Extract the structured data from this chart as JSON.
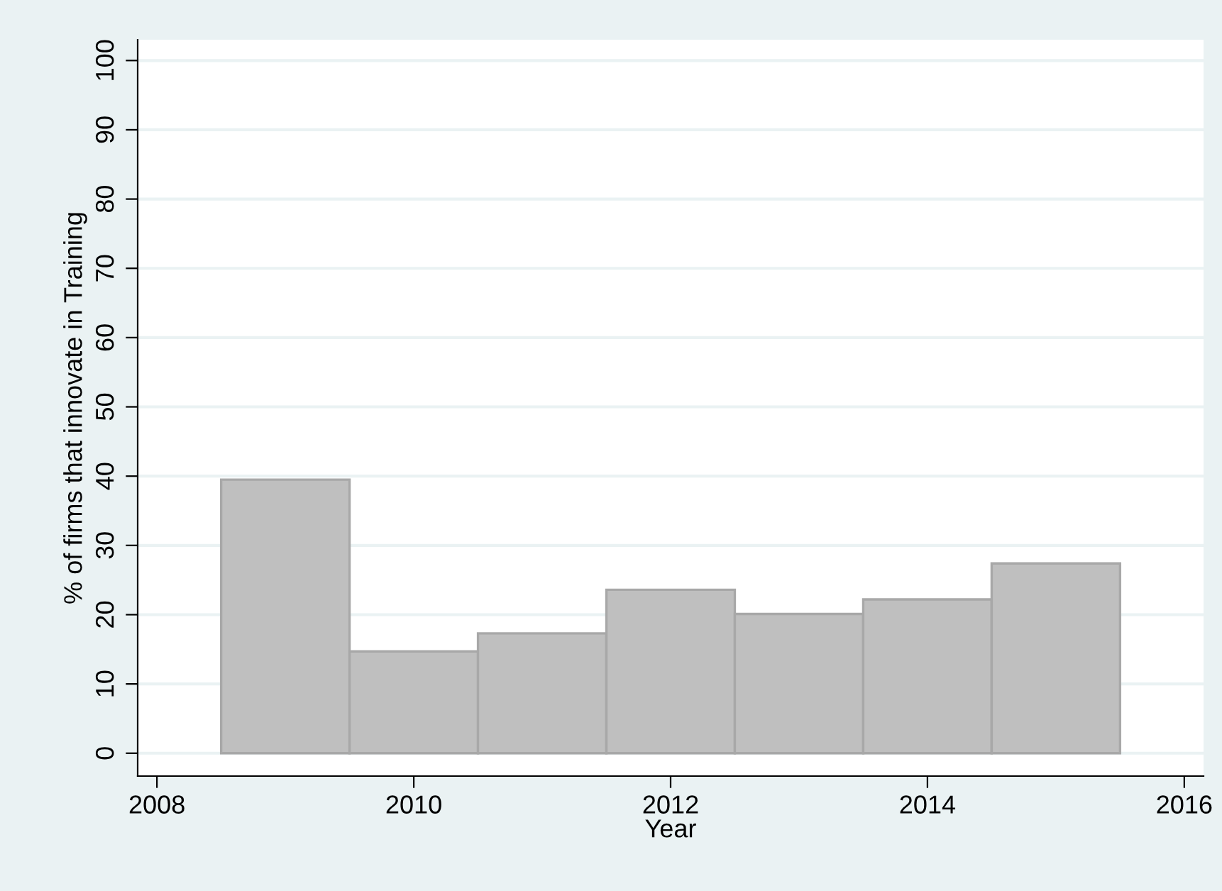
{
  "chart_data": {
    "type": "histogram",
    "xlabel": "Year",
    "ylabel": "% of firms that innovate in Training",
    "bins": [
      2008.5,
      2009.5,
      2010.5,
      2011.5,
      2012.5,
      2013.5,
      2014.5,
      2015.5
    ],
    "values": [
      39.5,
      14.7,
      17.3,
      23.6,
      20.1,
      22.2,
      27.4
    ],
    "color": "#bfbfbf",
    "xlim": [
      2007.85,
      2016.15
    ],
    "xticks": [
      2008,
      2010,
      2012,
      2014,
      2016
    ],
    "ylim": [
      -3.3,
      103
    ],
    "yticks": [
      0,
      10,
      20,
      30,
      40,
      50,
      60,
      70,
      80,
      90,
      100
    ],
    "grid": "y"
  }
}
